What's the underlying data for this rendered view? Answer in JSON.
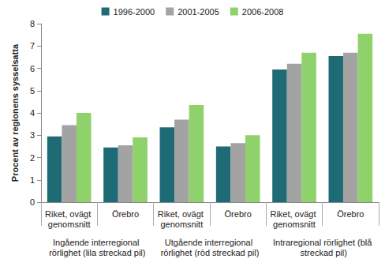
{
  "chart_data": {
    "type": "bar",
    "y_label": "Procent av regionens sysselsatta",
    "categories": [
      "Riket, ovägt genomsnitt",
      "Örebro",
      "Riket, ovägt genomsnitt",
      "Örebro",
      "Riket, ovägt genomsnitt",
      "Örebro"
    ],
    "category_groups": [
      "Ingående interregional rörlighet (lila streckad pil)",
      "Utgående interregional rörlighet (röd streckad pil)",
      "Intraregional rörlighet (blå streckad pil)"
    ],
    "series": [
      {
        "name": "1996-2000",
        "color": "#1f6b75",
        "values": [
          2.95,
          2.45,
          3.35,
          2.5,
          5.95,
          6.55
        ]
      },
      {
        "name": "2001-2005",
        "color": "#a3a3a3",
        "values": [
          3.45,
          2.55,
          3.7,
          2.65,
          6.2,
          6.7
        ]
      },
      {
        "name": "2006-2008",
        "color": "#8fd16a",
        "values": [
          4.0,
          2.9,
          4.35,
          3.0,
          6.7,
          7.55
        ]
      }
    ],
    "ylim": [
      0,
      8
    ],
    "yticks": [
      0,
      1,
      2,
      3,
      4,
      5,
      6,
      7,
      8
    ],
    "grid": false,
    "legend": "top"
  }
}
